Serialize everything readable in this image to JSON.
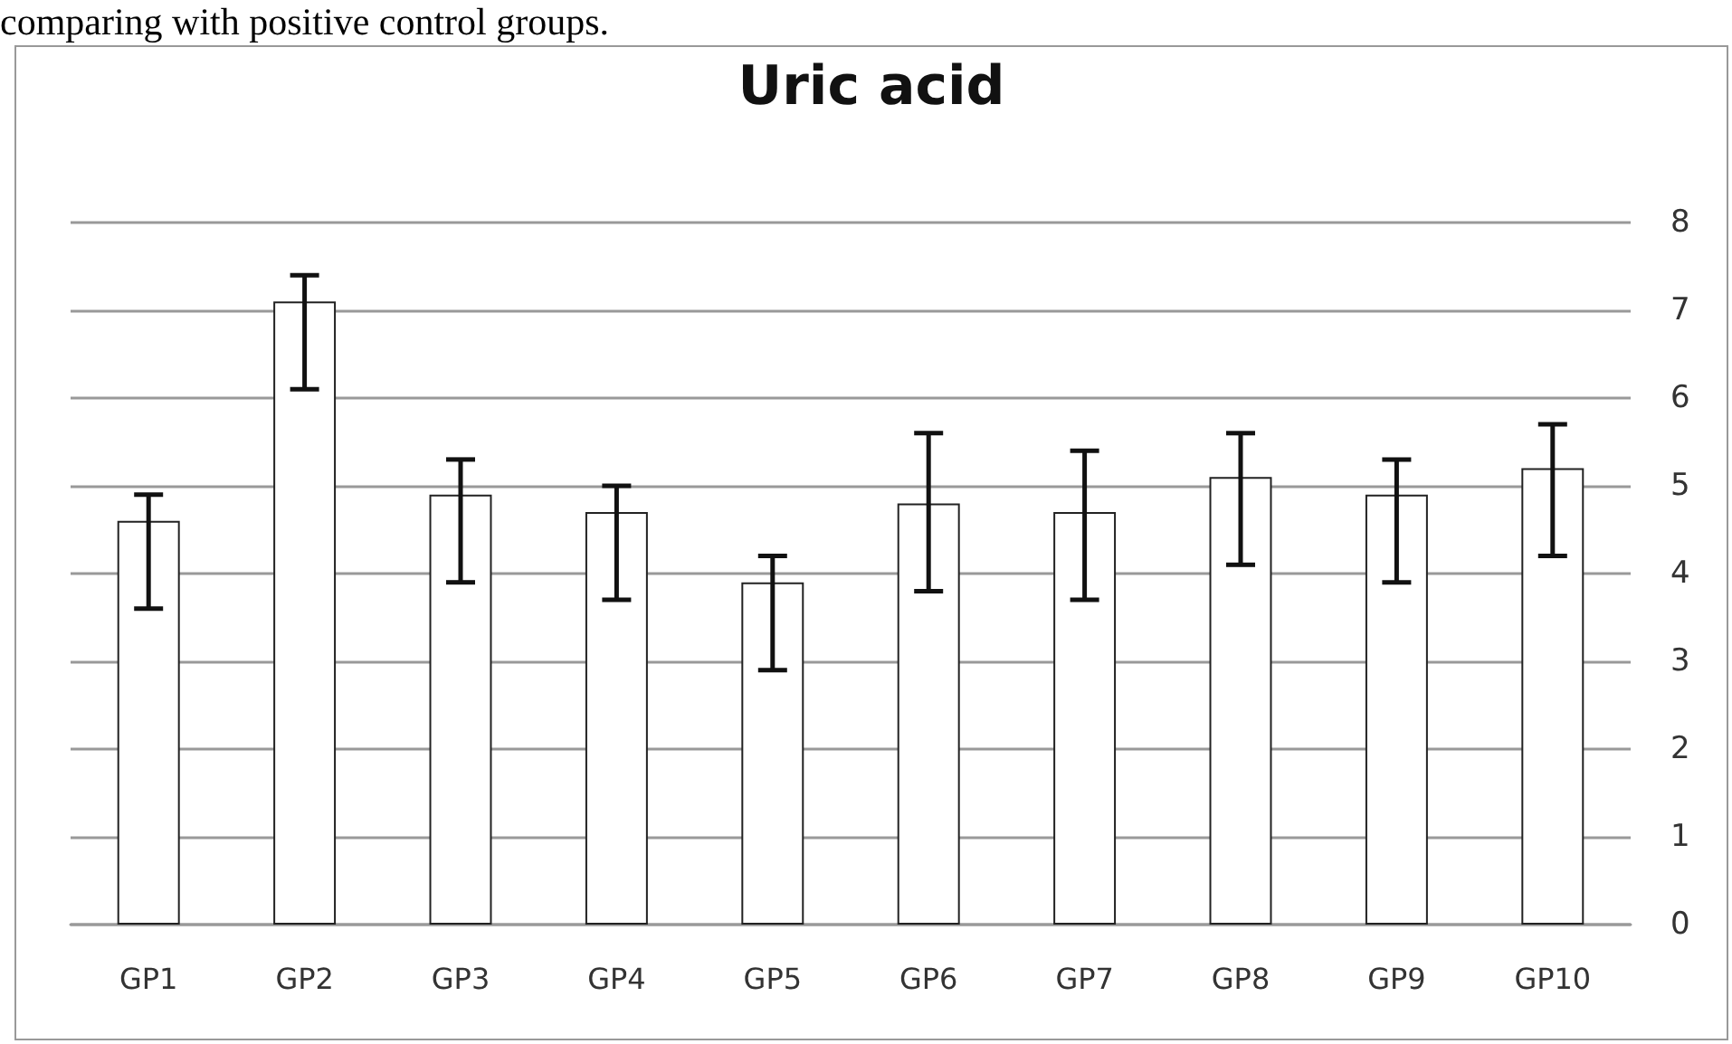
{
  "chart_data": {
    "type": "bar",
    "title": "Uric acid",
    "annotations": [
      "comparing with positive control groups."
    ],
    "categories": [
      "GP1",
      "GP2",
      "GP3",
      "GP4",
      "GP5",
      "GP6",
      "GP7",
      "GP8",
      "GP9",
      "GP10"
    ],
    "values": [
      4.6,
      7.1,
      4.9,
      4.7,
      3.9,
      4.8,
      4.7,
      5.1,
      4.9,
      5.2
    ],
    "errors": [
      [
        3.6,
        4.9
      ],
      [
        6.1,
        7.4
      ],
      [
        3.9,
        5.3
      ],
      [
        3.7,
        5.0
      ],
      [
        2.9,
        4.2
      ],
      [
        3.8,
        5.6
      ],
      [
        3.7,
        5.4
      ],
      [
        4.1,
        5.6
      ],
      [
        3.9,
        5.3
      ],
      [
        4.2,
        5.7
      ]
    ],
    "color": "#ffffff",
    "ylim": [
      0,
      8
    ],
    "yticks": [
      0,
      1,
      2,
      3,
      4,
      5,
      6,
      7,
      8
    ],
    "grid": "y"
  }
}
